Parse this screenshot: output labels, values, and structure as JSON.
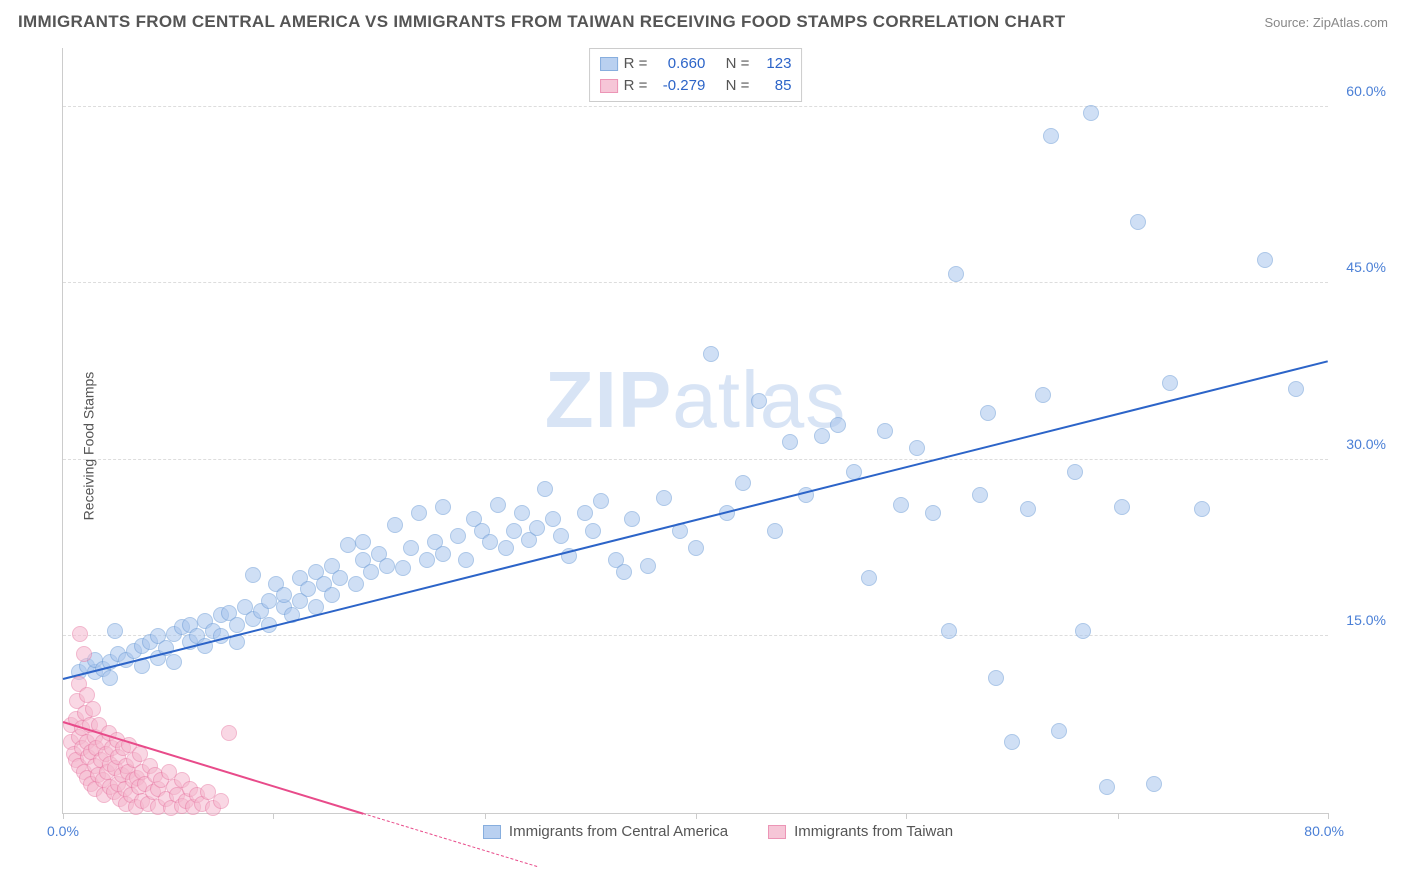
{
  "title": "IMMIGRANTS FROM CENTRAL AMERICA VS IMMIGRANTS FROM TAIWAN RECEIVING FOOD STAMPS CORRELATION CHART",
  "source": "Source: ZipAtlas.com",
  "watermark_bold": "ZIP",
  "watermark_light": "atlas",
  "y_axis_label": "Receiving Food Stamps",
  "chart": {
    "type": "scatter",
    "background_color": "#ffffff",
    "grid_color": "#dddddd",
    "axis_color": "#cccccc",
    "xlim": [
      0,
      80
    ],
    "ylim": [
      0,
      65
    ],
    "x_ticks_at": [
      0,
      13.3,
      26.7,
      40,
      53.3,
      66.7,
      80
    ],
    "y_gridlines": [
      15,
      30,
      45,
      60
    ],
    "y_tick_labels": [
      "15.0%",
      "30.0%",
      "45.0%",
      "60.0%"
    ],
    "x_axis_min_label": "0.0%",
    "x_axis_max_label": "80.0%",
    "tick_label_color": "#4a7fd6",
    "tick_fontsize": 14,
    "axis_label_color": "#555555",
    "series": [
      {
        "name": "Immigrants from Central America",
        "color_fill": "#a8c5ed",
        "color_stroke": "#6a9ad6",
        "fill_opacity": 0.55,
        "marker_radius": 8,
        "r_value": "0.660",
        "n_value": "123",
        "trend": {
          "x1": 0,
          "y1": 11.5,
          "x2": 80,
          "y2": 38.5,
          "color": "#2c64c8",
          "width": 2,
          "dash": false
        },
        "points": [
          [
            1,
            12
          ],
          [
            1.5,
            12.5
          ],
          [
            2,
            12
          ],
          [
            2,
            13
          ],
          [
            2.5,
            12.2
          ],
          [
            3,
            12.8
          ],
          [
            3,
            11.5
          ],
          [
            3.5,
            13.5
          ],
          [
            3.3,
            15.5
          ],
          [
            4,
            13
          ],
          [
            4.5,
            13.8
          ],
          [
            5,
            12.5
          ],
          [
            5,
            14.2
          ],
          [
            5.5,
            14.5
          ],
          [
            6,
            13.2
          ],
          [
            6,
            15
          ],
          [
            6.5,
            14
          ],
          [
            7,
            15.2
          ],
          [
            7,
            12.8
          ],
          [
            7.5,
            15.8
          ],
          [
            8,
            14.5
          ],
          [
            8,
            16
          ],
          [
            8.5,
            15
          ],
          [
            9,
            16.3
          ],
          [
            9,
            14.2
          ],
          [
            9.5,
            15.5
          ],
          [
            10,
            16.8
          ],
          [
            10,
            15
          ],
          [
            10.5,
            17
          ],
          [
            11,
            16
          ],
          [
            11,
            14.5
          ],
          [
            11.5,
            17.5
          ],
          [
            12,
            16.5
          ],
          [
            12,
            20.2
          ],
          [
            12.5,
            17.2
          ],
          [
            13,
            18
          ],
          [
            13,
            16
          ],
          [
            13.5,
            19.5
          ],
          [
            14,
            17.5
          ],
          [
            14,
            18.5
          ],
          [
            14.5,
            16.8
          ],
          [
            15,
            20
          ],
          [
            15,
            18
          ],
          [
            15.5,
            19
          ],
          [
            16,
            17.5
          ],
          [
            16,
            20.5
          ],
          [
            16.5,
            19.5
          ],
          [
            17,
            18.5
          ],
          [
            17,
            21
          ],
          [
            17.5,
            20
          ],
          [
            18,
            22.8
          ],
          [
            18.5,
            19.5
          ],
          [
            19,
            21.5
          ],
          [
            19,
            23
          ],
          [
            19.5,
            20.5
          ],
          [
            20,
            22
          ],
          [
            20.5,
            21
          ],
          [
            21,
            24.5
          ],
          [
            21.5,
            20.8
          ],
          [
            22,
            22.5
          ],
          [
            22.5,
            25.5
          ],
          [
            23,
            21.5
          ],
          [
            23.5,
            23
          ],
          [
            24,
            26
          ],
          [
            24,
            22
          ],
          [
            25,
            23.5
          ],
          [
            25.5,
            21.5
          ],
          [
            26,
            25
          ],
          [
            26.5,
            24
          ],
          [
            27,
            23
          ],
          [
            27.5,
            26.2
          ],
          [
            28,
            22.5
          ],
          [
            28.5,
            24
          ],
          [
            29,
            25.5
          ],
          [
            29.5,
            23.2
          ],
          [
            30,
            24.2
          ],
          [
            30.5,
            27.5
          ],
          [
            31,
            25
          ],
          [
            31.5,
            23.5
          ],
          [
            32,
            21.8
          ],
          [
            33,
            25.5
          ],
          [
            33.5,
            24
          ],
          [
            34,
            26.5
          ],
          [
            35,
            21.5
          ],
          [
            35.5,
            20.5
          ],
          [
            36,
            25
          ],
          [
            37,
            21
          ],
          [
            38,
            26.8
          ],
          [
            39,
            24
          ],
          [
            40,
            22.5
          ],
          [
            41,
            39
          ],
          [
            42,
            25.5
          ],
          [
            43,
            28
          ],
          [
            44,
            35
          ],
          [
            45,
            24
          ],
          [
            46,
            31.5
          ],
          [
            47,
            27
          ],
          [
            48,
            32
          ],
          [
            49,
            33
          ],
          [
            50,
            29
          ],
          [
            51,
            20
          ],
          [
            52,
            32.5
          ],
          [
            53,
            26.2
          ],
          [
            54,
            31
          ],
          [
            55,
            25.5
          ],
          [
            56,
            15.5
          ],
          [
            56.5,
            45.8
          ],
          [
            58,
            27
          ],
          [
            58.5,
            34
          ],
          [
            59,
            11.5
          ],
          [
            60,
            6
          ],
          [
            61,
            25.8
          ],
          [
            62,
            35.5
          ],
          [
            62.5,
            57.5
          ],
          [
            63,
            7
          ],
          [
            64,
            29
          ],
          [
            64.5,
            15.5
          ],
          [
            65,
            59.5
          ],
          [
            66,
            2.2
          ],
          [
            67,
            26
          ],
          [
            68,
            50.2
          ],
          [
            69,
            2.5
          ],
          [
            70,
            36.5
          ],
          [
            72,
            25.8
          ],
          [
            76,
            47
          ],
          [
            78,
            36
          ]
        ]
      },
      {
        "name": "Immigrants from Taiwan",
        "color_fill": "#f5b8ce",
        "color_stroke": "#e87ba5",
        "fill_opacity": 0.55,
        "marker_radius": 8,
        "r_value": "-0.279",
        "n_value": "85",
        "trend": {
          "x1": 0,
          "y1": 7.8,
          "x2": 19,
          "y2": 0,
          "color": "#e84b8a",
          "width": 2,
          "dash": false
        },
        "trend_ext": {
          "x1": 19,
          "y1": 0,
          "x2": 30,
          "y2": -4.5,
          "color": "#e84b8a",
          "width": 1,
          "dash": true
        },
        "points": [
          [
            0.5,
            6
          ],
          [
            0.5,
            7.5
          ],
          [
            0.7,
            5
          ],
          [
            0.8,
            8
          ],
          [
            0.8,
            4.5
          ],
          [
            0.9,
            9.5
          ],
          [
            1,
            6.5
          ],
          [
            1,
            4
          ],
          [
            1,
            11
          ],
          [
            1.1,
            15.2
          ],
          [
            1.2,
            7.2
          ],
          [
            1.2,
            5.5
          ],
          [
            1.3,
            13.5
          ],
          [
            1.3,
            3.5
          ],
          [
            1.4,
            8.5
          ],
          [
            1.5,
            6
          ],
          [
            1.5,
            3
          ],
          [
            1.5,
            10
          ],
          [
            1.6,
            4.8
          ],
          [
            1.7,
            7.5
          ],
          [
            1.8,
            2.5
          ],
          [
            1.8,
            5.2
          ],
          [
            1.9,
            8.8
          ],
          [
            2,
            4
          ],
          [
            2,
            6.5
          ],
          [
            2,
            2
          ],
          [
            2.1,
            5.5
          ],
          [
            2.2,
            3.2
          ],
          [
            2.3,
            7.5
          ],
          [
            2.4,
            4.5
          ],
          [
            2.5,
            2.8
          ],
          [
            2.5,
            6
          ],
          [
            2.6,
            1.5
          ],
          [
            2.7,
            5
          ],
          [
            2.8,
            3.5
          ],
          [
            2.9,
            6.8
          ],
          [
            3,
            2.2
          ],
          [
            3,
            4.2
          ],
          [
            3.1,
            5.5
          ],
          [
            3.2,
            1.8
          ],
          [
            3.3,
            3.8
          ],
          [
            3.4,
            6.2
          ],
          [
            3.5,
            2.5
          ],
          [
            3.5,
            4.8
          ],
          [
            3.6,
            1.2
          ],
          [
            3.7,
            3.2
          ],
          [
            3.8,
            5.5
          ],
          [
            3.9,
            2
          ],
          [
            4,
            4
          ],
          [
            4,
            0.8
          ],
          [
            4.1,
            3.5
          ],
          [
            4.2,
            5.8
          ],
          [
            4.3,
            1.5
          ],
          [
            4.4,
            2.8
          ],
          [
            4.5,
            4.5
          ],
          [
            4.6,
            0.5
          ],
          [
            4.7,
            3
          ],
          [
            4.8,
            2.2
          ],
          [
            4.9,
            5
          ],
          [
            5,
            1
          ],
          [
            5,
            3.5
          ],
          [
            5.2,
            2.5
          ],
          [
            5.4,
            0.8
          ],
          [
            5.5,
            4
          ],
          [
            5.7,
            1.8
          ],
          [
            5.8,
            3.2
          ],
          [
            6,
            2
          ],
          [
            6,
            0.5
          ],
          [
            6.2,
            2.8
          ],
          [
            6.5,
            1.2
          ],
          [
            6.7,
            3.5
          ],
          [
            6.8,
            0.4
          ],
          [
            7,
            2.2
          ],
          [
            7.2,
            1.5
          ],
          [
            7.5,
            2.8
          ],
          [
            7.5,
            0.6
          ],
          [
            7.8,
            1
          ],
          [
            8,
            2
          ],
          [
            8.2,
            0.5
          ],
          [
            8.5,
            1.5
          ],
          [
            8.8,
            0.8
          ],
          [
            9.2,
            1.8
          ],
          [
            9.5,
            0.4
          ],
          [
            10,
            1
          ],
          [
            10.5,
            6.8
          ]
        ]
      }
    ]
  },
  "stats_box": {
    "r_label": "R =",
    "n_label": "N ="
  },
  "footer_legend": [
    "Immigrants from Central America",
    "Immigrants from Taiwan"
  ]
}
